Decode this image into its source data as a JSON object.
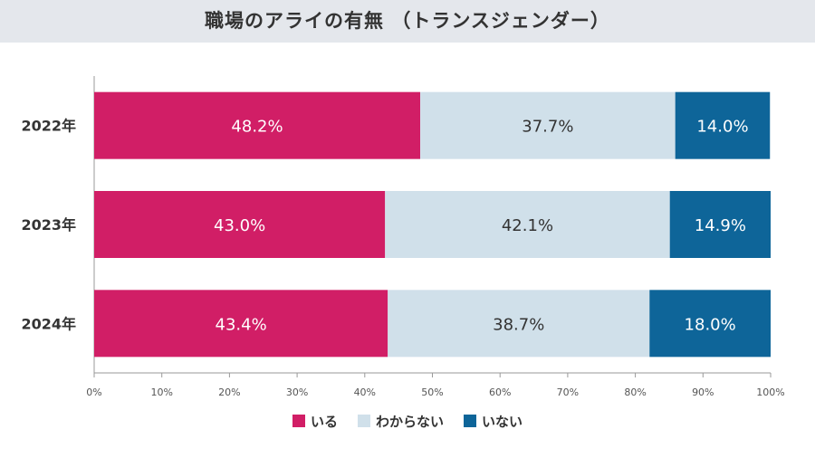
{
  "chart_data": {
    "type": "bar",
    "orientation": "horizontal",
    "stacked": true,
    "title": "職場のアライの有無 （トランスジェンダー）",
    "categories": [
      "2022年",
      "2023年",
      "2024年"
    ],
    "series": [
      {
        "name": "いる",
        "color": "#d11e66",
        "label_color": "#ffffff",
        "values": [
          48.2,
          43.0,
          43.4
        ],
        "labels": [
          "48.2%",
          "43.0%",
          "43.4%"
        ]
      },
      {
        "name": "わからない",
        "color": "#d0e0ea",
        "label_color": "#333333",
        "values": [
          37.7,
          42.1,
          38.7
        ],
        "labels": [
          "37.7%",
          "42.1%",
          "38.7%"
        ]
      },
      {
        "name": "いない",
        "color": "#0e6599",
        "label_color": "#ffffff",
        "values": [
          14.0,
          14.9,
          18.0
        ],
        "labels": [
          "14.0%",
          "14.9%",
          "18.0%"
        ]
      }
    ],
    "xlim": [
      0,
      100
    ],
    "xticks": [
      "0%",
      "10%",
      "20%",
      "30%",
      "40%",
      "50%",
      "60%",
      "70%",
      "80%",
      "90%",
      "100%"
    ],
    "legend_position": "bottom"
  }
}
